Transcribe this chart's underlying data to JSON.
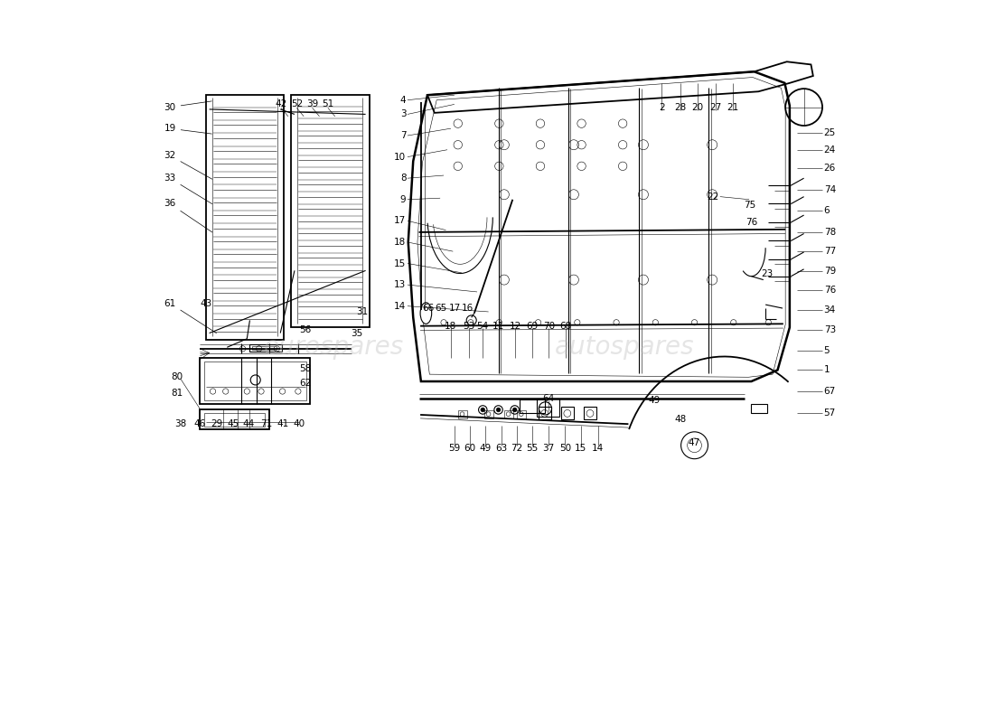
{
  "background_color": "#ffffff",
  "line_color": "#000000",
  "figure_width": 11.0,
  "figure_height": 8.0,
  "dpi": 100
}
